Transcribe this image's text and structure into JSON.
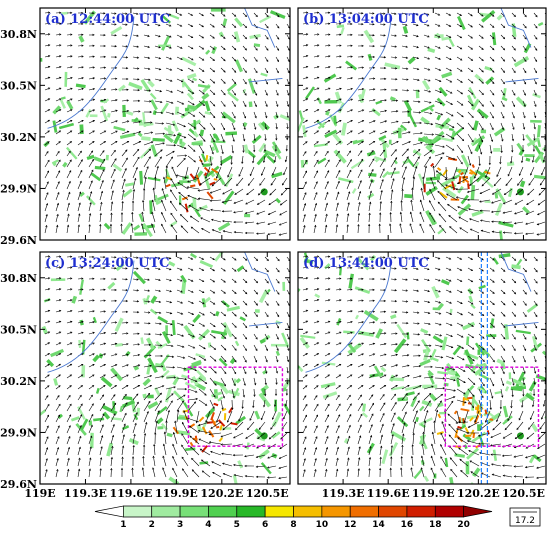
{
  "chart_data": {
    "type": "map",
    "panels": [
      {
        "label": "(a) 12:44:00 UTC"
      },
      {
        "label": "(b) 13:04:00 UTC"
      },
      {
        "label": "(c) 13:24:00 UTC"
      },
      {
        "label": "(d) 13:44:00 UTC"
      }
    ],
    "y_ticks": [
      "30.8N",
      "30.5N",
      "30.2N",
      "29.9N",
      "29.6N"
    ],
    "y_tick_values": [
      30.8,
      30.5,
      30.2,
      29.9,
      29.6
    ],
    "x_ticks_left": [
      "119E",
      "119.3E",
      "119.6E",
      "119.9E",
      "120.2E",
      "120.5E"
    ],
    "x_ticks_right": [
      "119.3E",
      "119.6E",
      "119.9E",
      "120.2E",
      "120.5E"
    ],
    "x_tick_values": [
      119.0,
      119.3,
      119.6,
      119.9,
      120.2,
      120.5
    ],
    "xlim": [
      119.0,
      120.65
    ],
    "ylim": [
      29.6,
      30.95
    ],
    "colorbar": {
      "levels": [
        "1",
        "2",
        "3",
        "4",
        "5",
        "6",
        "8",
        "10",
        "12",
        "14",
        "16",
        "18",
        "20"
      ],
      "colors": [
        "#ffffff",
        "#c8f5c8",
        "#a0eba0",
        "#78e078",
        "#50d050",
        "#28b828",
        "#f5e600",
        "#f5be00",
        "#f59600",
        "#f06e00",
        "#e04600",
        "#d01e00",
        "#b00000",
        "#900000"
      ]
    },
    "reference_vector": "17.2",
    "highlight_boxes": [
      {
        "panel": 2,
        "lon": [
          119.98,
          120.6
        ],
        "lat": [
          29.82,
          30.28
        ],
        "color": "#e000e0"
      },
      {
        "panel": 3,
        "lon": [
          119.98,
          120.6
        ],
        "lat": [
          29.82,
          30.28
        ],
        "color": "#e000e0"
      }
    ],
    "cross_lines": [
      {
        "panel": 3,
        "lon": 120.22,
        "color": "#2080ff"
      },
      {
        "panel": 3,
        "lon": 120.26,
        "color": "#2080ff"
      }
    ]
  }
}
